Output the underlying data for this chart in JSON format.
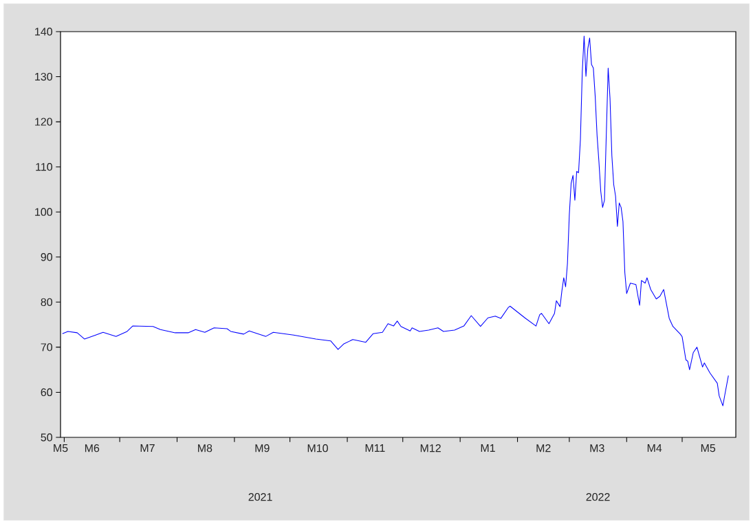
{
  "chart_data": {
    "type": "line",
    "x": [
      "2021-05-31",
      "2021-06-03",
      "2021-06-08",
      "2021-06-12",
      "2021-06-18",
      "2021-06-22",
      "2021-06-29",
      "2021-07-05",
      "2021-07-08",
      "2021-07-19",
      "2021-07-23",
      "2021-07-31",
      "2021-08-07",
      "2021-08-11",
      "2021-08-16",
      "2021-08-21",
      "2021-08-28",
      "2021-08-30",
      "2021-09-06",
      "2021-09-09",
      "2021-09-18",
      "2021-09-22",
      "2021-10-03",
      "2021-10-15",
      "2021-10-23",
      "2021-10-27",
      "2021-10-30",
      "2021-11-04",
      "2021-11-11",
      "2021-11-15",
      "2021-11-20",
      "2021-11-23",
      "2021-11-26",
      "2021-11-28",
      "2021-11-30",
      "2021-12-05",
      "2021-12-06",
      "2021-12-10",
      "2021-12-15",
      "2021-12-20",
      "2021-12-23",
      "2021-12-29",
      "2022-01-03",
      "2022-01-07",
      "2022-01-12",
      "2022-01-16",
      "2022-01-20",
      "2022-01-23",
      "2022-01-27",
      "2022-01-28",
      "2022-02-05",
      "2022-02-11",
      "2022-02-13",
      "2022-02-14",
      "2022-02-18",
      "2022-02-21",
      "2022-02-22",
      "2022-02-24",
      "2022-02-25",
      "2022-02-26",
      "2022-02-27",
      "2022-02-28",
      "2022-03-01",
      "2022-03-02",
      "2022-03-03",
      "2022-03-04",
      "2022-03-05",
      "2022-03-06",
      "2022-03-07",
      "2022-03-08",
      "2022-03-09",
      "2022-03-10",
      "2022-03-11",
      "2022-03-12",
      "2022-03-13",
      "2022-03-14",
      "2022-03-15",
      "2022-03-16",
      "2022-03-17",
      "2022-03-18",
      "2022-03-19",
      "2022-03-20",
      "2022-03-21",
      "2022-03-22",
      "2022-03-23",
      "2022-03-24",
      "2022-03-25",
      "2022-03-26",
      "2022-03-27",
      "2022-03-28",
      "2022-03-29",
      "2022-03-30",
      "2022-03-31",
      "2022-04-01",
      "2022-04-03",
      "2022-04-06",
      "2022-04-08",
      "2022-04-09",
      "2022-04-11",
      "2022-04-12",
      "2022-04-14",
      "2022-04-17",
      "2022-04-19",
      "2022-04-21",
      "2022-04-24",
      "2022-04-26",
      "2022-04-30",
      "2022-05-01",
      "2022-05-03",
      "2022-05-04",
      "2022-05-05",
      "2022-05-07",
      "2022-05-09",
      "2022-05-12",
      "2022-05-13",
      "2022-05-16",
      "2022-05-20",
      "2022-05-21",
      "2022-05-23",
      "2022-05-24",
      "2022-05-26"
    ],
    "series": [
      {
        "color": "#0000ff",
        "values": [
          73.0,
          73.5,
          73.2,
          71.8,
          72.7,
          73.3,
          72.4,
          73.5,
          74.7,
          74.6,
          73.9,
          73.2,
          73.2,
          73.9,
          73.3,
          74.3,
          74.1,
          73.5,
          72.9,
          73.6,
          72.4,
          73.3,
          72.7,
          71.8,
          71.4,
          69.5,
          70.7,
          71.7,
          71.1,
          73.0,
          73.3,
          75.2,
          74.7,
          75.8,
          74.6,
          73.6,
          74.3,
          73.5,
          73.8,
          74.3,
          73.5,
          73.8,
          74.7,
          77.0,
          74.6,
          76.5,
          76.9,
          76.4,
          78.8,
          79.1,
          76.5,
          74.7,
          77.2,
          77.5,
          75.2,
          77.5,
          80.3,
          79.0,
          82.5,
          85.4,
          83.4,
          88.6,
          99.4,
          106.4,
          108.1,
          102.6,
          109.0,
          108.7,
          116.1,
          131.0,
          139.0,
          130.1,
          136.2,
          138.6,
          132.7,
          131.9,
          125.6,
          117.0,
          111.2,
          104.6,
          101.0,
          102.6,
          117.3,
          131.9,
          125.2,
          112.5,
          106.1,
          103.5,
          96.8,
          102.0,
          101.0,
          97.9,
          86.6,
          81.9,
          84.2,
          83.9,
          79.3,
          84.8,
          84.2,
          85.4,
          82.8,
          80.7,
          81.3,
          82.8,
          76.4,
          74.6,
          72.9,
          72.3,
          67.2,
          66.9,
          65.0,
          68.8,
          70.0,
          65.6,
          66.5,
          64.3,
          62.0,
          59.2,
          57.0,
          59.3,
          63.7
        ]
      }
    ],
    "xlim": [
      "2021-05-30",
      "2022-05-30"
    ],
    "xticks": [
      {
        "value": "2021-05-30",
        "label": "M5"
      },
      {
        "value": "2021-06-01",
        "label": null
      },
      {
        "value": "2021-06-16",
        "label": "M6"
      },
      {
        "value": "2021-07-01",
        "label": null
      },
      {
        "value": "2021-07-16",
        "label": "M7"
      },
      {
        "value": "2021-08-01",
        "label": null
      },
      {
        "value": "2021-08-16",
        "label": "M8"
      },
      {
        "value": "2021-09-01",
        "label": null
      },
      {
        "value": "2021-09-16",
        "label": "M9"
      },
      {
        "value": "2021-10-01",
        "label": null
      },
      {
        "value": "2021-10-16",
        "label": "M10"
      },
      {
        "value": "2021-11-01",
        "label": null
      },
      {
        "value": "2021-11-16",
        "label": "M11"
      },
      {
        "value": "2021-12-01",
        "label": null
      },
      {
        "value": "2021-12-16",
        "label": "M12"
      },
      {
        "value": "2022-01-01",
        "label": null
      },
      {
        "value": "2022-01-16",
        "label": "M1"
      },
      {
        "value": "2022-02-01",
        "label": null
      },
      {
        "value": "2022-02-15",
        "label": "M2"
      },
      {
        "value": "2022-03-01",
        "label": null
      },
      {
        "value": "2022-03-16",
        "label": "M3"
      },
      {
        "value": "2022-04-01",
        "label": null
      },
      {
        "value": "2022-04-16",
        "label": "M4"
      },
      {
        "value": "2022-05-01",
        "label": null
      },
      {
        "value": "2022-05-15",
        "label": "M5"
      }
    ],
    "ylim": [
      50,
      140
    ],
    "yticks": [
      50,
      60,
      70,
      80,
      90,
      100,
      110,
      120,
      130,
      140
    ],
    "annotations": [
      "2021",
      "2022"
    ],
    "grid": false,
    "marker": "none",
    "line_style": "solid"
  }
}
